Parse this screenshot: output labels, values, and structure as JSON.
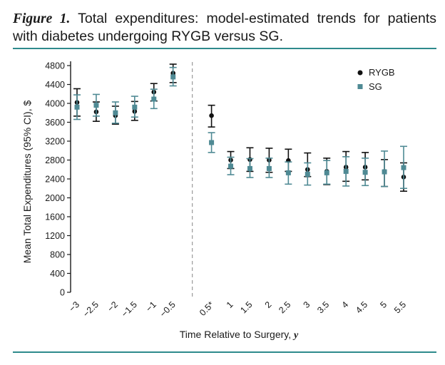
{
  "caption": {
    "label": "Figure 1.",
    "text": "Total expenditures: model-estimated trends for patients with diabetes undergoing RYGB versus SG."
  },
  "colors": {
    "rygb": "#111111",
    "sg": "#4f8a94",
    "rule": "#2e8a8c",
    "divider": "#999999"
  },
  "chart_data": {
    "type": "scatter",
    "title": "Total expenditures: model-estimated trends for patients with diabetes undergoing RYGB versus SG.",
    "xlabel": "Time Relative to Surgery, y",
    "ylabel": "Mean Total Expenditures (95% CI), $",
    "ylim": [
      0,
      4800
    ],
    "yticks": [
      0,
      400,
      800,
      1200,
      1600,
      2000,
      2400,
      2800,
      3200,
      3600,
      4000,
      4400,
      4800
    ],
    "categories": [
      "−3",
      "−2.5",
      "−2",
      "−1.5",
      "−1",
      "−0.5",
      "0.5*",
      "1",
      "1.5",
      "2",
      "2.5",
      "3",
      "3.5",
      "4",
      "4.5",
      "5",
      "5.5"
    ],
    "x": [
      -3,
      -2.5,
      -2,
      -1.5,
      -1,
      -0.5,
      0.5,
      1,
      1.5,
      2,
      2.5,
      3,
      3.5,
      4,
      4.5,
      5,
      5.5
    ],
    "divider_at": 0,
    "legend_position": "top-right",
    "series": [
      {
        "name": "RYGB",
        "marker": "circle",
        "values": [
          4020,
          3820,
          3740,
          3830,
          4240,
          4640,
          3740,
          2800,
          2810,
          2800,
          2790,
          2600,
          2560,
          2650,
          2650,
          2560,
          2440
        ],
        "lower": [
          3730,
          3620,
          3560,
          3640,
          4050,
          4440,
          3500,
          2620,
          2560,
          2540,
          2560,
          2450,
          2280,
          2350,
          2380,
          2240,
          2140
        ],
        "upper": [
          4310,
          4030,
          3940,
          4040,
          4420,
          4830,
          3960,
          2980,
          3060,
          3050,
          3030,
          2950,
          2840,
          2980,
          2960,
          2810,
          2740
        ]
      },
      {
        "name": "SG",
        "marker": "square",
        "values": [
          3920,
          3960,
          3800,
          3920,
          4090,
          4560,
          3170,
          2670,
          2620,
          2620,
          2530,
          2500,
          2530,
          2560,
          2540,
          2550,
          2640
        ],
        "lower": [
          3660,
          3730,
          3580,
          3710,
          3890,
          4370,
          2960,
          2490,
          2430,
          2430,
          2290,
          2270,
          2290,
          2250,
          2260,
          2240,
          2200
        ],
        "upper": [
          4180,
          4190,
          4030,
          4150,
          4300,
          4760,
          3380,
          2860,
          2830,
          2840,
          2760,
          2740,
          2790,
          2870,
          2840,
          2990,
          3090
        ]
      }
    ]
  }
}
